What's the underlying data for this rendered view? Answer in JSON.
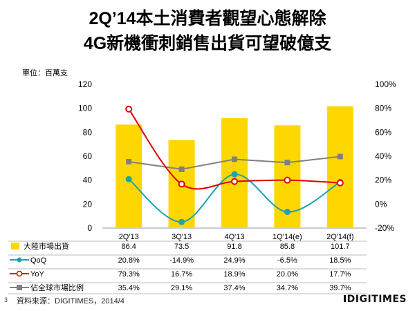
{
  "header": {
    "title_line1": "2Q’14本土消費者觀望心態解除",
    "title_line2": "4G新機衝刺銷售出貨可望破億支",
    "unit": "單位：百萬支"
  },
  "footer": {
    "page_number": "3",
    "source": "資料來源：DIGITIMES，2014/4",
    "logo": "DIGITIMES"
  },
  "colors": {
    "bar": "#FFD700",
    "qoq": "#1AA3B3",
    "yoy": "#E00000",
    "share": "#808080"
  },
  "chart_data": {
    "type": "bar",
    "categories": [
      "2Q'13",
      "3Q'13",
      "4Q'13",
      "1Q'14(e)",
      "2Q'14(f)"
    ],
    "left_axis": {
      "ylim": [
        0,
        120
      ],
      "ticks": [
        "0",
        "20",
        "40",
        "60",
        "80",
        "100",
        "120"
      ]
    },
    "right_axis": {
      "ylim": [
        -20,
        100
      ],
      "ticks": [
        "-20%",
        "0%",
        "20%",
        "40%",
        "60%",
        "80%",
        "100%"
      ]
    },
    "series": [
      {
        "name": "大陸市場出貨",
        "kind": "bar",
        "axis": "left",
        "values": [
          86.4,
          73.5,
          91.8,
          85.8,
          101.7
        ],
        "labels": [
          "86.4",
          "73.5",
          "91.8",
          "85.8",
          "101.7"
        ]
      },
      {
        "name": "QoQ",
        "kind": "line-smooth",
        "axis": "right",
        "marker": "circle-filled",
        "values": [
          20.8,
          -14.9,
          24.9,
          -6.5,
          18.5
        ],
        "labels": [
          "20.8%",
          "-14.9%",
          "24.9%",
          "-6.5%",
          "18.5%"
        ]
      },
      {
        "name": "YoY",
        "kind": "line-smooth",
        "axis": "right",
        "marker": "circle-open",
        "values": [
          79.3,
          16.7,
          18.9,
          20.0,
          17.7
        ],
        "labels": [
          "79.3%",
          "16.7%",
          "18.9%",
          "20.0%",
          "17.7%"
        ]
      },
      {
        "name": "佔全球市場比例",
        "kind": "line",
        "axis": "right",
        "marker": "square",
        "values": [
          35.4,
          29.1,
          37.4,
          34.7,
          39.7
        ],
        "labels": [
          "35.4%",
          "29.1%",
          "37.4%",
          "34.7%",
          "39.7%"
        ]
      }
    ],
    "grid": false,
    "legend": "data-table-below"
  }
}
